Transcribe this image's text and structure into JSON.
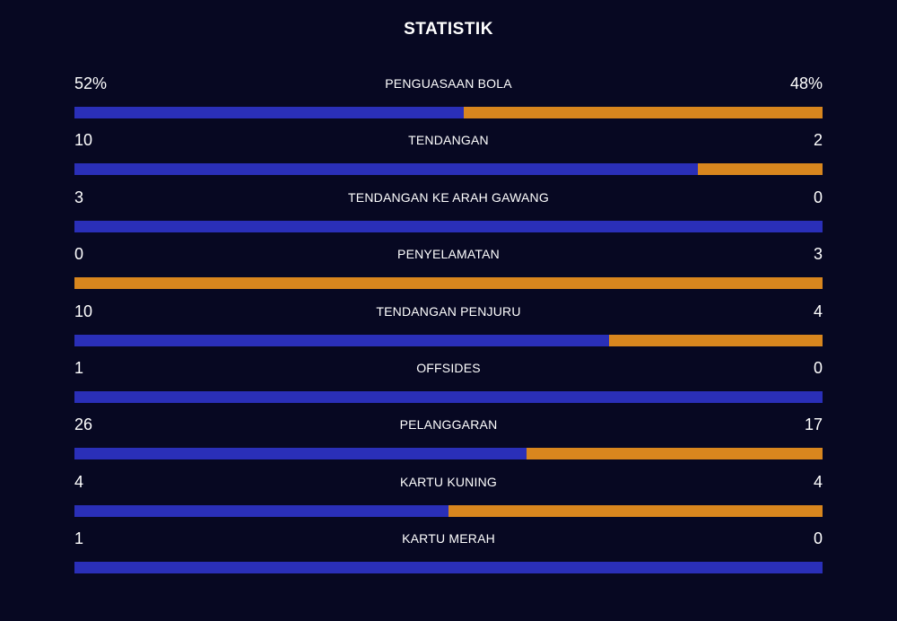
{
  "title": "STATISTIK",
  "colors": {
    "background": "#070822",
    "home": "#2a2fb8",
    "away": "#d8861e",
    "text": "#ffffff"
  },
  "stats": [
    {
      "label": "PENGUASAAN BOLA",
      "home": "52%",
      "away": "48%",
      "home_value": 52,
      "away_value": 48
    },
    {
      "label": "TENDANGAN",
      "home": "10",
      "away": "2",
      "home_value": 10,
      "away_value": 2
    },
    {
      "label": "TENDANGAN KE ARAH GAWANG",
      "home": "3",
      "away": "0",
      "home_value": 3,
      "away_value": 0
    },
    {
      "label": "PENYELAMATAN",
      "home": "0",
      "away": "3",
      "home_value": 0,
      "away_value": 3
    },
    {
      "label": "TENDANGAN PENJURU",
      "home": "10",
      "away": "4",
      "home_value": 10,
      "away_value": 4
    },
    {
      "label": "OFFSIDES",
      "home": "1",
      "away": "0",
      "home_value": 1,
      "away_value": 0
    },
    {
      "label": "PELANGGARAN",
      "home": "26",
      "away": "17",
      "home_value": 26,
      "away_value": 17
    },
    {
      "label": "KARTU KUNING",
      "home": "4",
      "away": "4",
      "home_value": 4,
      "away_value": 4
    },
    {
      "label": "KARTU MERAH",
      "home": "1",
      "away": "0",
      "home_value": 1,
      "away_value": 0
    }
  ]
}
